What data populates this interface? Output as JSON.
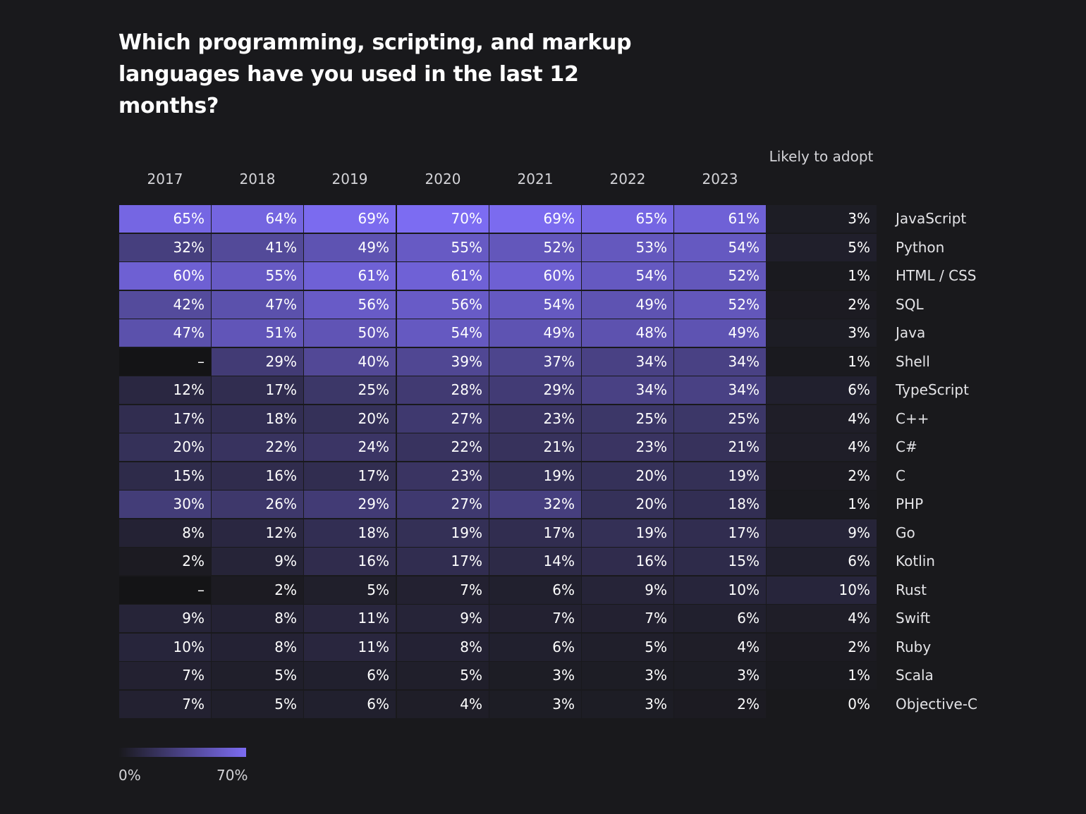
{
  "chart_data": {
    "type": "heatmap",
    "title": "Which programming, scripting, and markup languages have you used in the last 12 months?",
    "columns": [
      "2017",
      "2018",
      "2019",
      "2020",
      "2021",
      "2022",
      "2023"
    ],
    "adopt_header": "Likely to adopt",
    "rows": [
      {
        "label": "JavaScript",
        "values": [
          "65%",
          "64%",
          "69%",
          "70%",
          "69%",
          "65%",
          "61%"
        ],
        "adopt": "3%"
      },
      {
        "label": "Python",
        "values": [
          "32%",
          "41%",
          "49%",
          "55%",
          "52%",
          "53%",
          "54%"
        ],
        "adopt": "5%"
      },
      {
        "label": "HTML / CSS",
        "values": [
          "60%",
          "55%",
          "61%",
          "61%",
          "60%",
          "54%",
          "52%"
        ],
        "adopt": "1%"
      },
      {
        "label": "SQL",
        "values": [
          "42%",
          "47%",
          "56%",
          "56%",
          "54%",
          "49%",
          "52%"
        ],
        "adopt": "2%"
      },
      {
        "label": "Java",
        "values": [
          "47%",
          "51%",
          "50%",
          "54%",
          "49%",
          "48%",
          "49%"
        ],
        "adopt": "3%"
      },
      {
        "label": "Shell",
        "values": [
          "–",
          "29%",
          "40%",
          "39%",
          "37%",
          "34%",
          "34%"
        ],
        "adopt": "1%"
      },
      {
        "label": "TypeScript",
        "values": [
          "12%",
          "17%",
          "25%",
          "28%",
          "29%",
          "34%",
          "34%"
        ],
        "adopt": "6%"
      },
      {
        "label": "C++",
        "values": [
          "17%",
          "18%",
          "20%",
          "27%",
          "23%",
          "25%",
          "25%"
        ],
        "adopt": "4%"
      },
      {
        "label": "C#",
        "values": [
          "20%",
          "22%",
          "24%",
          "22%",
          "21%",
          "23%",
          "21%"
        ],
        "adopt": "4%"
      },
      {
        "label": "C",
        "values": [
          "15%",
          "16%",
          "17%",
          "23%",
          "19%",
          "20%",
          "19%"
        ],
        "adopt": "2%"
      },
      {
        "label": "PHP",
        "values": [
          "30%",
          "26%",
          "29%",
          "27%",
          "32%",
          "20%",
          "18%"
        ],
        "adopt": "1%"
      },
      {
        "label": "Go",
        "values": [
          "8%",
          "12%",
          "18%",
          "19%",
          "17%",
          "19%",
          "17%"
        ],
        "adopt": "9%"
      },
      {
        "label": "Kotlin",
        "values": [
          "2%",
          "9%",
          "16%",
          "17%",
          "14%",
          "16%",
          "15%"
        ],
        "adopt": "6%"
      },
      {
        "label": "Rust",
        "values": [
          "–",
          "2%",
          "5%",
          "7%",
          "6%",
          "9%",
          "10%"
        ],
        "adopt": "10%"
      },
      {
        "label": "Swift",
        "values": [
          "9%",
          "8%",
          "11%",
          "9%",
          "7%",
          "7%",
          "6%"
        ],
        "adopt": "4%"
      },
      {
        "label": "Ruby",
        "values": [
          "10%",
          "8%",
          "11%",
          "8%",
          "6%",
          "5%",
          "4%"
        ],
        "adopt": "2%"
      },
      {
        "label": "Scala",
        "values": [
          "7%",
          "5%",
          "6%",
          "5%",
          "3%",
          "3%",
          "3%"
        ],
        "adopt": "1%"
      },
      {
        "label": "Objective-C",
        "values": [
          "7%",
          "5%",
          "6%",
          "4%",
          "3%",
          "3%",
          "2%"
        ],
        "adopt": "0%"
      }
    ],
    "scale": {
      "min": 0,
      "max": 70,
      "min_label": "0%",
      "max_label": "70%"
    },
    "colors": {
      "background": "#19191c",
      "low": "#19191c",
      "high": "#7c6cf2"
    }
  }
}
